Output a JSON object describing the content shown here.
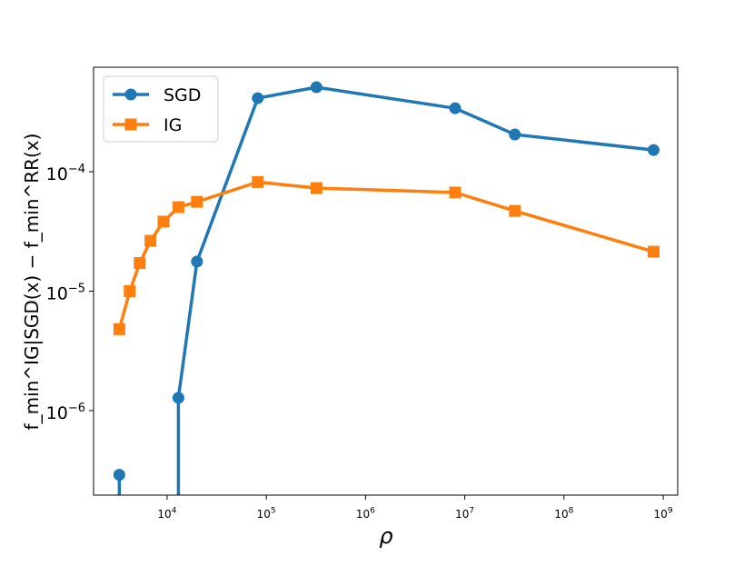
{
  "chart_data": {
    "type": "line",
    "x_label": "ρ",
    "y_label": "f_min^IG|SGD(x) − f_min^RR(x)",
    "log_x": true,
    "log_y": true,
    "legend": "upper left",
    "x": [
      3300,
      4200,
      5300,
      6800,
      9200,
      13000,
      20000,
      82000,
      320000,
      8000000,
      32000000,
      800000000
    ],
    "series": [
      {
        "name": "SGD",
        "color": "#1f77b4",
        "marker": "circle",
        "values": [
          2.9e-07,
          null,
          null,
          null,
          null,
          1.28e-06,
          1.77e-05,
          0.000413,
          0.00051,
          0.00034,
          0.000205,
          0.000152
        ]
      },
      {
        "name": "IG",
        "color": "#ff7f0e",
        "marker": "square",
        "values": [
          4.8e-06,
          1e-05,
          1.72e-05,
          2.64e-05,
          3.82e-05,
          5.05e-05,
          5.6e-05,
          8.2e-05,
          7.3e-05,
          6.7e-05,
          4.7e-05,
          2.14e-05
        ]
      }
    ],
    "xlim": [
      1815,
      1400000000
    ],
    "ylim": [
      1.96e-07,
      0.00075
    ],
    "xticks": [
      {
        "value": 10000,
        "label": "104"
      },
      {
        "value": 100000,
        "label": "105"
      },
      {
        "value": 1000000,
        "label": "106"
      },
      {
        "value": 10000000,
        "label": "107"
      },
      {
        "value": 100000000,
        "label": "108"
      },
      {
        "value": 1000000000,
        "label": "109"
      }
    ],
    "yticks": [
      {
        "value": 1e-06,
        "label": "10−6"
      },
      {
        "value": 1e-05,
        "label": "10−5"
      },
      {
        "value": 0.0001,
        "label": "10−4"
      }
    ]
  }
}
